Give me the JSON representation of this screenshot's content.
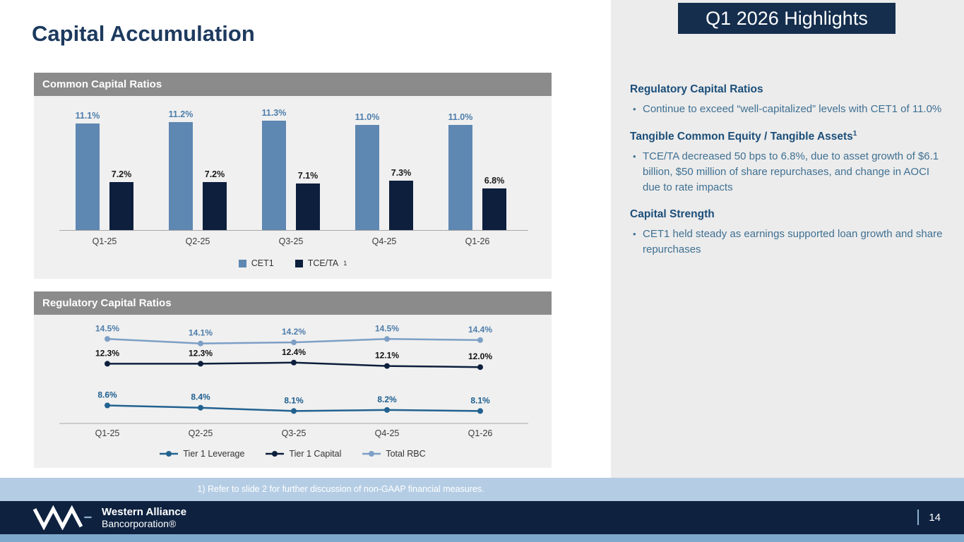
{
  "slide": {
    "title": "Capital Accumulation",
    "page_number": "14",
    "footnote": "1) Refer to slide 2 for further discussion of non-GAAP financial measures."
  },
  "footer": {
    "brand_line1": "Western Alliance",
    "brand_line2": "Bancorporation®"
  },
  "highlights": {
    "title": "Q1 2026 Highlights",
    "sections": [
      {
        "heading": "Regulatory Capital Ratios",
        "bullets": [
          "Continue to exceed “well-capitalized” levels with CET1 of 11.0%"
        ]
      },
      {
        "heading": "Tangible Common Equity / Tangible Assets",
        "sup": "1",
        "bullets": [
          "TCE/TA decreased 50 bps to 6.8%, due to asset growth of $6.1 billion, $50 million of share repurchases, and change in AOCI due to rate impacts"
        ]
      },
      {
        "heading": "Capital Strength",
        "bullets": [
          "CET1 held steady as earnings supported loan growth and share repurchases"
        ]
      }
    ]
  },
  "chart_data": [
    {
      "type": "bar",
      "title": "Common Capital Ratios",
      "categories": [
        "Q1-25",
        "Q2-25",
        "Q3-25",
        "Q4-25",
        "Q1-26"
      ],
      "series": [
        {
          "name": "CET1",
          "values": [
            11.1,
            11.2,
            11.3,
            11.0,
            11.0
          ],
          "color": "#5e87b2",
          "label_color": "#4d7dab"
        },
        {
          "name": "TCE/TA",
          "sup": "1",
          "values": [
            7.2,
            7.2,
            7.1,
            7.3,
            6.8
          ],
          "color": "#0d1f3d",
          "label_color": "#1a1a1a"
        }
      ],
      "unit": "%",
      "ylim": [
        4,
        12
      ],
      "grid": false,
      "legend_position": "bottom"
    },
    {
      "type": "line",
      "title": "Regulatory Capital Ratios",
      "categories": [
        "Q1-25",
        "Q2-25",
        "Q3-25",
        "Q4-25",
        "Q1-26"
      ],
      "series": [
        {
          "name": "Tier 1 Leverage",
          "values": [
            8.6,
            8.4,
            8.1,
            8.2,
            8.1
          ],
          "color": "#226290",
          "label_color": "#1d5e8e"
        },
        {
          "name": "Tier 1 Capital",
          "values": [
            12.3,
            12.3,
            12.4,
            12.1,
            12.0
          ],
          "color": "#0d1f3d",
          "label_color": "#111111"
        },
        {
          "name": "Total RBC",
          "values": [
            14.5,
            14.1,
            14.2,
            14.5,
            14.4
          ],
          "color": "#7d9fc6",
          "label_color": "#4d7dab"
        }
      ],
      "unit": "%",
      "ylim": [
        7,
        15.9
      ],
      "grid": false,
      "legend_position": "bottom"
    }
  ],
  "palette": {
    "footer_navy": "#0e2240",
    "highlight_box_navy": "#152e4e",
    "panel_header_gray": "#8b8b8b",
    "panel_bg": "#f0f0f0",
    "heading_blue": "#1b4e79",
    "body_text_blue": "#3f7092",
    "band_light_blue": "#b5cde4",
    "bottom_strip_blue": "#7fa9cc",
    "title_navy": "#1d3a5e"
  }
}
